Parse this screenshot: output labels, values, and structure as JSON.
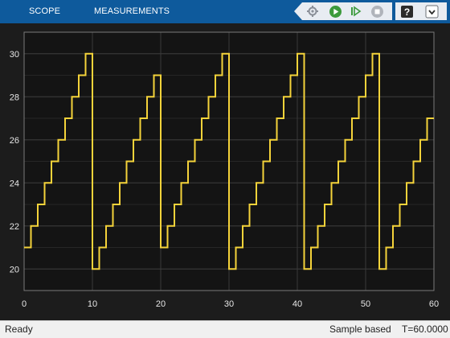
{
  "toolstrip": {
    "tabs": [
      {
        "label": "SCOPE"
      },
      {
        "label": "MEASUREMENTS"
      }
    ],
    "controls": [
      "stepping-options-icon",
      "run-icon",
      "step-forward-icon",
      "stop-icon"
    ],
    "help": [
      "help-icon",
      "expand-icon"
    ]
  },
  "colors": {
    "toolstrip": "#0e5a9c",
    "plot_background": "#141414",
    "signal": "#f5d33a",
    "grid": "#3a3a3a"
  },
  "chart_data": {
    "type": "line",
    "x": [
      0,
      1,
      1,
      2,
      2,
      3,
      3,
      4,
      4,
      5,
      5,
      6,
      6,
      7,
      7,
      8,
      8,
      9,
      9,
      10,
      10,
      11,
      11,
      12,
      12,
      13,
      13,
      14,
      14,
      15,
      15,
      16,
      16,
      17,
      17,
      18,
      18,
      19,
      19,
      20,
      20,
      21,
      21,
      22,
      22,
      23,
      23,
      24,
      24,
      25,
      25,
      26,
      26,
      27,
      27,
      28,
      28,
      29,
      29,
      30,
      30,
      31,
      31,
      32,
      32,
      33,
      33,
      34,
      34,
      35,
      35,
      36,
      36,
      37,
      37,
      38,
      38,
      39,
      39,
      40,
      40,
      41,
      41,
      42,
      42,
      43,
      43,
      44,
      44,
      45,
      45,
      46,
      46,
      47,
      47,
      48,
      48,
      49,
      49,
      50,
      50,
      51,
      51,
      52,
      52,
      53,
      53,
      54,
      54,
      55,
      55,
      56,
      56,
      57,
      57,
      58,
      58,
      59,
      59,
      60
    ],
    "y": [
      21,
      21,
      22,
      22,
      23,
      23,
      24,
      24,
      25,
      25,
      26,
      26,
      27,
      27,
      28,
      28,
      29,
      29,
      30,
      30,
      20,
      20,
      21,
      21,
      22,
      22,
      23,
      23,
      24,
      24,
      25,
      25,
      26,
      26,
      27,
      27,
      28,
      28,
      29,
      29,
      21,
      21,
      22,
      22,
      23,
      23,
      24,
      24,
      25,
      25,
      26,
      26,
      27,
      27,
      28,
      28,
      29,
      29,
      30,
      30,
      20,
      20,
      21,
      21,
      22,
      22,
      23,
      23,
      24,
      24,
      25,
      25,
      26,
      26,
      27,
      27,
      28,
      28,
      29,
      29,
      30,
      30,
      20,
      20,
      21,
      21,
      22,
      22,
      23,
      23,
      24,
      24,
      25,
      25,
      26,
      26,
      27,
      27,
      28,
      28,
      29,
      29,
      30,
      30,
      20,
      20,
      21,
      21,
      22,
      22,
      23,
      23,
      24,
      24,
      25,
      25,
      26,
      26,
      27,
      27
    ],
    "xlim": [
      0,
      60
    ],
    "ylim": [
      19,
      31
    ],
    "xticks": [
      "0",
      "10",
      "20",
      "30",
      "40",
      "50",
      "60"
    ],
    "yticks": [
      "20",
      "22",
      "24",
      "26",
      "28",
      "30"
    ],
    "grid": true
  },
  "status": {
    "left": "Ready",
    "mode": "Sample based",
    "time": "T=60.0000"
  }
}
